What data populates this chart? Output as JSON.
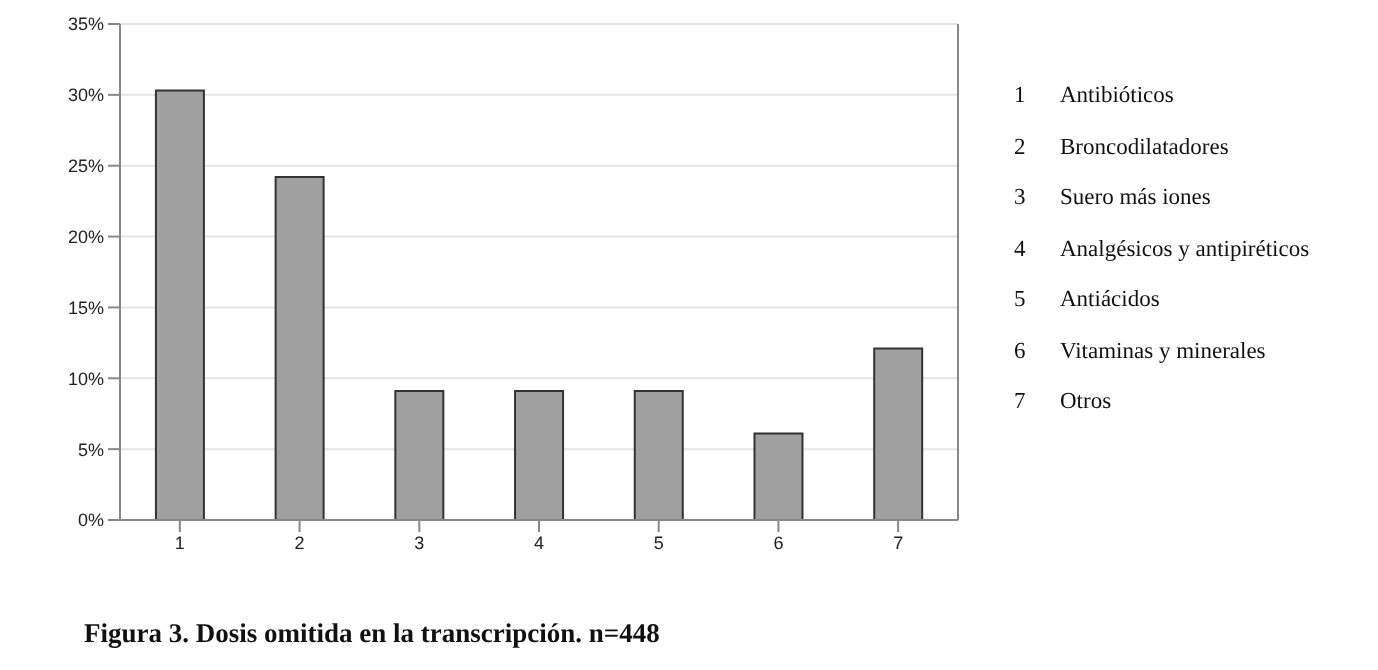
{
  "chart_data": {
    "type": "bar",
    "title": "Figura 3. Dosis omitida en la transcripción. n=448",
    "categories": [
      "1",
      "2",
      "3",
      "4",
      "5",
      "6",
      "7"
    ],
    "values": [
      30.3,
      24.2,
      9.1,
      9.1,
      9.1,
      6.1,
      12.1
    ],
    "color": "#a0a0a0",
    "ylim": [
      0,
      35
    ],
    "yticks": [
      {
        "value": 0,
        "label": "0%"
      },
      {
        "value": 5,
        "label": "5%"
      },
      {
        "value": 10,
        "label": "10%"
      },
      {
        "value": 15,
        "label": "15%"
      },
      {
        "value": 20,
        "label": "20%"
      },
      {
        "value": 25,
        "label": "25%"
      },
      {
        "value": 30,
        "label": "30%"
      },
      {
        "value": 35,
        "label": "35%"
      }
    ],
    "grid": "y",
    "annotations": [
      "1 Antibióticos",
      "2 Broncodilatadores",
      "3 Suero más iones",
      "4 Analgésicos y antipiréticos",
      "5 Antiácidos",
      "6 Vitaminas y minerales",
      "7 Otros"
    ]
  }
}
